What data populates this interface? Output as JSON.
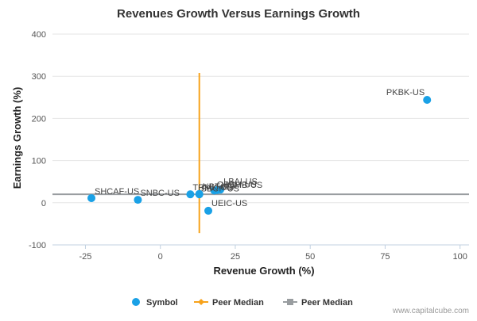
{
  "chart_data": {
    "type": "scatter",
    "title": "Revenues Growth Versus Earnings Growth",
    "xlabel": "Revenue Growth (%)",
    "ylabel": "Earnings Growth (%)",
    "xlim": [
      -36,
      103
    ],
    "ylim": [
      -100,
      400
    ],
    "x_ticks": [
      -25,
      0,
      25,
      50,
      75,
      100
    ],
    "x_tick_labels": [
      "-25",
      "0",
      "25",
      "50",
      "75",
      "100"
    ],
    "y_ticks": [
      -100,
      0,
      100,
      200,
      300,
      400
    ],
    "y_tick_labels": [
      "-100",
      "0",
      "100",
      "200",
      "300",
      "400"
    ],
    "grid": "horizontal",
    "legend_position": "bottom-center",
    "colors": {
      "points": "#1aa1e6",
      "peer_median_revenue": "#f7a21b",
      "peer_median_earnings": "#999da0",
      "grid": "#e6e6e6"
    },
    "series": [
      {
        "name": "Symbol",
        "points": [
          {
            "label": "SHCAF-US",
            "x": -23,
            "y": 11
          },
          {
            "label": "SNBC-US",
            "x": -7.5,
            "y": 7
          },
          {
            "label": "TRMK-US",
            "x": 10,
            "y": 20
          },
          {
            "label": "NBT-US",
            "x": 13,
            "y": 20
          },
          {
            "label": "SBCF-US",
            "x": 13,
            "y": 21
          },
          {
            "label": "OBSH-US",
            "x": 18,
            "y": 29
          },
          {
            "label": "UEIC-US",
            "x": 16,
            "y": -19
          },
          {
            "label": "HOMB-US",
            "x": 19,
            "y": 30
          },
          {
            "label": "LBAI-US",
            "x": 20,
            "y": 31
          },
          {
            "label": "PKBK-US",
            "x": 89,
            "y": 244
          }
        ]
      },
      {
        "name": "Peer Median",
        "type": "vertical-line",
        "x": 13,
        "y_range": [
          -72,
          308
        ]
      },
      {
        "name": "Peer Median",
        "type": "horizontal-line",
        "y": 20
      }
    ]
  },
  "credit": "www.capitalcube.com"
}
